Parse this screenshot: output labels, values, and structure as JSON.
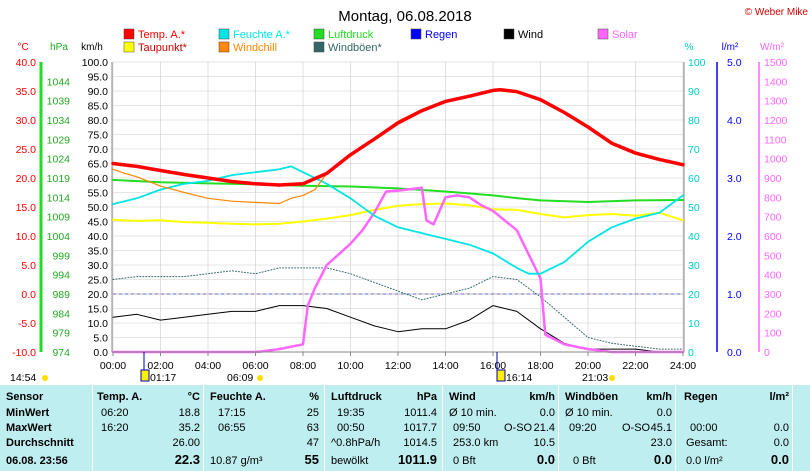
{
  "title": "Montag, 06.08.2018",
  "copyright": "© Weber Mike",
  "legend": [
    {
      "label": "Temp. A.*",
      "color": "#ff0000"
    },
    {
      "label": "Feuchte A.*",
      "color": "#00e5e5"
    },
    {
      "label": "Luftdruck",
      "color": "#22dd22"
    },
    {
      "label": "Regen",
      "color": "#0000ff"
    },
    {
      "label": "Wind",
      "color": "#000000"
    },
    {
      "label": "Solar",
      "color": "#ff66ff"
    },
    {
      "label": "Taupunkt*",
      "color": "#ffff00"
    },
    {
      "label": "Windchill",
      "color": "#ff8800"
    },
    {
      "label": "Windböen*",
      "color": "#336666"
    }
  ],
  "axis_units": {
    "temp": "°C",
    "pressure": "hPa",
    "wind": "km/h",
    "humidity": "%",
    "rain": "l/m²",
    "solar": "W/m²"
  },
  "marker_labels": {
    "left_time": "14:54",
    "a": "01:17",
    "b": "06:09",
    "c": "16:14",
    "d": "21:03"
  },
  "chart_data": {
    "type": "line",
    "title": "Montag, 06.08.2018",
    "x_ticks": [
      "00:00",
      "02:00",
      "04:00",
      "06:00",
      "08:00",
      "10:00",
      "12:00",
      "14:00",
      "16:00",
      "18:00",
      "20:00",
      "22:00",
      "24:00"
    ],
    "axes": {
      "temp_c": {
        "range": [
          -10,
          40
        ],
        "ticks": [
          "40.0",
          "35.0",
          "30.0",
          "25.0",
          "20.0",
          "15.0",
          "10.0",
          "5.0",
          "0.0",
          "-5.0",
          "-10.0"
        ],
        "color": "#ff0000"
      },
      "pressure_hpa": {
        "range": [
          974,
          1049
        ],
        "ticks": [
          "1044",
          "1039",
          "1034",
          "1029",
          "1024",
          "1019",
          "1014",
          "1009",
          "1004",
          "999",
          "994",
          "989",
          "984",
          "979",
          "974"
        ],
        "color": "#22aa22"
      },
      "wind_kmh": {
        "range": [
          0,
          100
        ],
        "ticks": [
          "100.0",
          "95.0",
          "90.0",
          "85.0",
          "80.0",
          "75.0",
          "70.0",
          "65.0",
          "60.0",
          "55.0",
          "50.0",
          "45.0",
          "40.0",
          "35.0",
          "30.0",
          "25.0",
          "20.0",
          "15.0",
          "10.0",
          "5.0",
          "0.0"
        ],
        "color": "#000000"
      },
      "humidity_pct": {
        "range": [
          0,
          100
        ],
        "ticks": [
          "100",
          "90",
          "80",
          "70",
          "60",
          "50",
          "40",
          "30",
          "20",
          "10",
          "0"
        ],
        "color": "#00cccc"
      },
      "rain_lm2": {
        "range": [
          0,
          5
        ],
        "ticks": [
          "5.0",
          "4.0",
          "3.0",
          "2.0",
          "1.0",
          "0.0"
        ],
        "color": "#0000ff"
      },
      "solar_wm2": {
        "range": [
          0,
          1500
        ],
        "ticks": [
          "1500",
          "1400",
          "1300",
          "1200",
          "1100",
          "1000",
          "900",
          "800",
          "700",
          "600",
          "500",
          "400",
          "300",
          "200",
          "100",
          "0"
        ],
        "color": "#ff66ff"
      }
    },
    "series": [
      {
        "name": "Temp. A.*",
        "axis": "temp_c",
        "color": "#ff0000",
        "width": 3.5,
        "x": [
          0,
          1,
          2,
          3,
          4,
          5,
          6,
          6.5,
          7,
          8,
          9,
          10,
          11,
          12,
          13,
          14,
          15,
          16,
          16.3,
          17,
          18,
          19,
          20,
          21,
          22,
          23,
          24
        ],
        "y": [
          22.5,
          22.0,
          21.3,
          20.6,
          20.0,
          19.4,
          19.0,
          18.9,
          18.8,
          19.0,
          20.8,
          24.0,
          26.7,
          29.5,
          31.6,
          33.2,
          34.1,
          35.1,
          35.2,
          34.9,
          33.5,
          31.3,
          28.8,
          26.0,
          24.3,
          23.2,
          22.3
        ]
      },
      {
        "name": "Windchill",
        "axis": "temp_c",
        "color": "#ff8800",
        "width": 1.2,
        "x": [
          0,
          0.5,
          1,
          2,
          3,
          4,
          5,
          6,
          7,
          7.5,
          8,
          8.5,
          9,
          10,
          11,
          12,
          13,
          14,
          15,
          16,
          17,
          18,
          19,
          20,
          21,
          22,
          23,
          24
        ],
        "y": [
          21.5,
          20.8,
          20.2,
          18.6,
          17.5,
          16.5,
          16.0,
          15.8,
          15.6,
          16.5,
          17.0,
          18.0,
          20.8,
          24.2,
          26.9,
          29.8,
          31.8,
          33.4,
          34.2,
          35.1,
          34.8,
          33.4,
          31.2,
          28.6,
          25.8,
          24.1,
          23.0,
          22.1
        ]
      },
      {
        "name": "Feuchte A.*",
        "axis": "humidity_pct",
        "color": "#00e5e5",
        "width": 1.8,
        "x": [
          0,
          1,
          2,
          3,
          4,
          5,
          6,
          7,
          7.5,
          8,
          9,
          10,
          11,
          12,
          13,
          14,
          15,
          16,
          17,
          17.5,
          18,
          19,
          20,
          21,
          22,
          23,
          23.5,
          24
        ],
        "y": [
          51,
          53,
          56,
          58,
          59,
          61,
          62,
          63,
          64,
          62,
          58,
          53,
          47,
          43,
          41,
          39,
          37,
          34,
          29,
          27,
          27,
          31,
          38,
          43,
          46,
          48,
          51,
          54
        ]
      },
      {
        "name": "Luftdruck",
        "axis": "pressure_hpa",
        "color": "#22dd22",
        "width": 2,
        "x": [
          0,
          2,
          4,
          6,
          8,
          10,
          12,
          14,
          16,
          17,
          18,
          20,
          22,
          24
        ],
        "y": [
          1018.5,
          1017.9,
          1017.6,
          1017.4,
          1017.0,
          1016.8,
          1016.3,
          1015.5,
          1014.5,
          1013.8,
          1013.2,
          1012.8,
          1013.2,
          1013.3
        ]
      },
      {
        "name": "Taupunkt*",
        "axis": "temp_c",
        "color": "#ffff00",
        "width": 2,
        "x": [
          0,
          1,
          2,
          3,
          4,
          5,
          6,
          7,
          8,
          9,
          10,
          11,
          12,
          13,
          14,
          15,
          16,
          17,
          18,
          19,
          20,
          21,
          22,
          23,
          24
        ],
        "y": [
          12.8,
          12.6,
          12.7,
          12.4,
          12.3,
          12.1,
          12.0,
          12.1,
          12.5,
          13.0,
          13.6,
          14.5,
          15.2,
          15.5,
          15.6,
          15.3,
          14.6,
          14.5,
          13.8,
          13.2,
          13.6,
          13.8,
          13.5,
          14.0,
          12.7
        ]
      },
      {
        "name": "Solar",
        "axis": "solar_wm2",
        "color": "#ff66ff",
        "width": 2.5,
        "x": [
          0,
          5.9,
          6.2,
          7,
          8,
          8.2,
          8.5,
          9,
          10,
          10.5,
          11,
          11.5,
          12,
          13,
          13.2,
          13.5,
          14,
          14.5,
          15,
          15.5,
          16,
          17,
          18,
          18.2,
          19,
          20,
          21,
          24
        ],
        "y": [
          0,
          0,
          2,
          15,
          40,
          240,
          330,
          450,
          560,
          630,
          720,
          830,
          835,
          850,
          680,
          660,
          800,
          810,
          800,
          760,
          730,
          630,
          380,
          90,
          40,
          15,
          0,
          0
        ]
      },
      {
        "name": "Wind",
        "axis": "wind_kmh",
        "color": "#000000",
        "width": 1,
        "x": [
          0,
          1,
          2,
          3,
          4,
          5,
          6,
          7,
          8,
          9,
          10,
          11,
          12,
          13,
          14,
          15,
          16,
          17,
          18,
          19,
          20,
          21,
          22,
          23,
          24
        ],
        "y": [
          12,
          13,
          11,
          12,
          13,
          14,
          14,
          16,
          16,
          15,
          12,
          9,
          7,
          8,
          8,
          11,
          16,
          14,
          8,
          3,
          1,
          1,
          1,
          0,
          0
        ]
      },
      {
        "name": "Windböen*",
        "axis": "wind_kmh",
        "color": "#336666",
        "width": 1,
        "dash": "1,2",
        "x": [
          0,
          1,
          2,
          3,
          4,
          5,
          6,
          7,
          8,
          9,
          10,
          11,
          12,
          13,
          14,
          15,
          16,
          17,
          18,
          19,
          20,
          21,
          22,
          23,
          24
        ],
        "y": [
          25,
          26,
          26,
          26,
          27,
          28,
          27,
          29,
          29,
          29,
          27,
          24,
          21,
          18,
          20,
          22,
          26,
          25,
          19,
          12,
          5,
          3,
          2,
          1,
          1
        ]
      }
    ]
  },
  "table": {
    "columns": [
      {
        "title": "Sensor",
        "unit": ""
      },
      {
        "title": "Temp. A.",
        "unit": "°C"
      },
      {
        "title": "Feuchte A.",
        "unit": "%"
      },
      {
        "title": "Luftdruck",
        "unit": "hPa"
      },
      {
        "title": "Wind",
        "unit": "km/h"
      },
      {
        "title": "Windböen",
        "unit": "km/h"
      },
      {
        "title": "Regen",
        "unit": "l/m²"
      }
    ],
    "sensor_rows": [
      "MinWert",
      "MaxWert",
      "Durchschnitt"
    ],
    "current_date": "06.08. 23:56",
    "temp": {
      "min_time": "06:20",
      "min": "18.8",
      "max_time": "16:20",
      "max": "35.2",
      "avg": "26.00",
      "cur": "22.3"
    },
    "hum": {
      "min_time": "17:15",
      "min": "25",
      "max_time": "06:55",
      "max": "63",
      "avg": "47",
      "abs": "10.87 g/m³",
      "cur": "55"
    },
    "press": {
      "min_time": "19:35",
      "min": "1011.4",
      "max_time": "00:50",
      "max": "1017.7",
      "trend": "^0.8hPa/h",
      "avg": "1014.5",
      "state": "bewölkt",
      "cur": "1011.9"
    },
    "wind": {
      "r1_label": "Ø 10 min.",
      "r1": "0.0",
      "r2_time": "09:50",
      "r2_dir": "O-SO",
      "r2": "21.4",
      "r3_label": "253.0 km",
      "r3": "10.5",
      "r4_label": "0 Bft",
      "r4": "0.0"
    },
    "gust": {
      "r1_label": "Ø 10 min.",
      "r1": "0.0",
      "r2_time": "09:20",
      "r2_dir": "O-SO",
      "r2": "45.1",
      "r3": "23.0",
      "r4_label": "0 Bft",
      "r4": "0.0"
    },
    "rain": {
      "r2_label": "00:00",
      "r2": "0.0",
      "r3_label": "Gesamt:",
      "r3": "0.0",
      "r4_label": "0.0 l/m²",
      "r4": "0.0"
    }
  }
}
